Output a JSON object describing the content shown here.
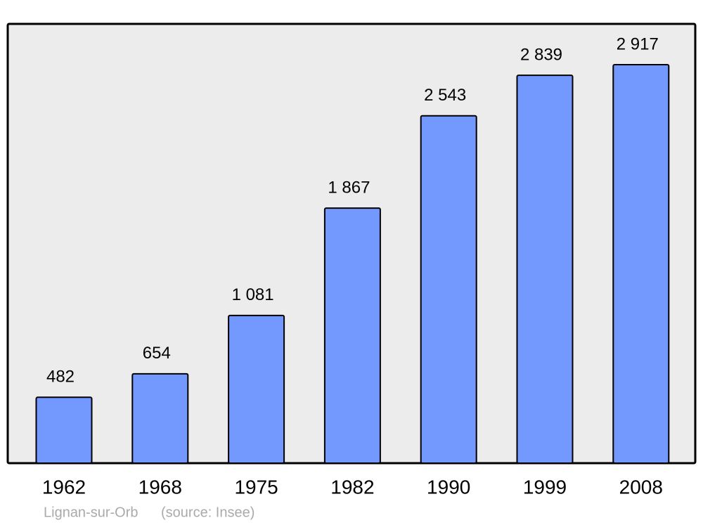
{
  "chart_data": {
    "type": "bar",
    "categories": [
      "1962",
      "1968",
      "1975",
      "1982",
      "1990",
      "1999",
      "2008"
    ],
    "values": [
      482,
      654,
      1081,
      1867,
      2543,
      2839,
      2917
    ],
    "value_labels": [
      "482",
      "654",
      "1 081",
      "1 867",
      "2 543",
      "2 839",
      "2 917"
    ],
    "color": "#7399ff",
    "caption": "Lignan-sur-Orb",
    "source": "(source: Insee)"
  }
}
